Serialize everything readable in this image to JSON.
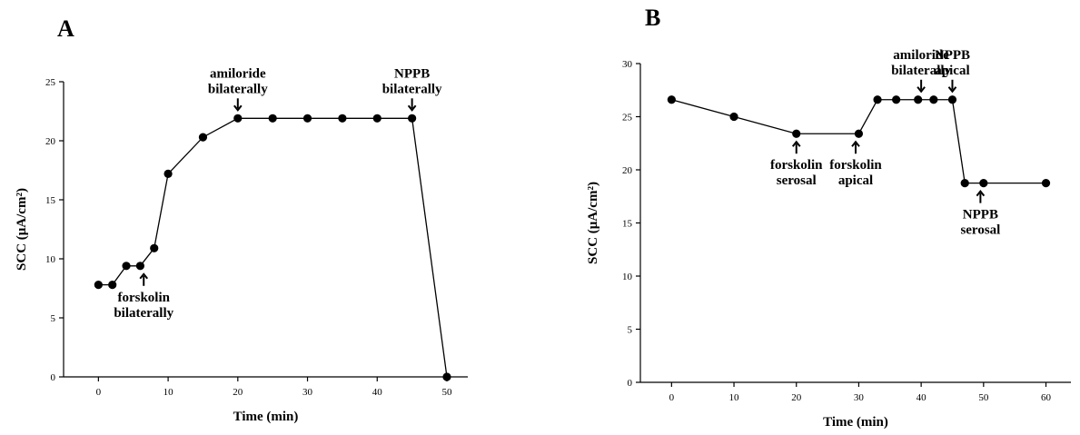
{
  "chart_data": [
    {
      "type": "line",
      "panel_label": "A",
      "xlabel": "Time (min)",
      "ylabel": "SCC (μA/cm²)",
      "xlim": [
        -5,
        53
      ],
      "ylim": [
        0,
        25
      ],
      "xticks": [
        "0",
        "10",
        "20",
        "30",
        "40",
        "50"
      ],
      "yticks": [
        "0",
        "5",
        "10",
        "15",
        "20",
        "25"
      ],
      "grid": false,
      "legend": "none",
      "series": [
        {
          "x": [
            0,
            2,
            4,
            6,
            8,
            10,
            15,
            20,
            25,
            30,
            35,
            40,
            45,
            50
          ],
          "y": [
            7.8,
            7.8,
            9.4,
            9.4,
            10.9,
            17.2,
            20.3,
            21.9,
            21.9,
            21.9,
            21.9,
            21.9,
            21.9,
            0
          ]
        }
      ],
      "annotations": [
        {
          "lines": [
            "forskolin",
            "bilaterally"
          ],
          "x": 6.5,
          "y": 9.4,
          "arrow": "up"
        },
        {
          "lines": [
            "amiloride",
            "bilaterally"
          ],
          "x": 20,
          "y": 21.9,
          "arrow": "down"
        },
        {
          "lines": [
            "NPPB",
            "bilaterally"
          ],
          "x": 45,
          "y": 21.9,
          "arrow": "down"
        }
      ]
    },
    {
      "type": "line",
      "panel_label": "B",
      "xlabel": "Time (min)",
      "ylabel": "SCC (μA/cm²)",
      "xlim": [
        -5,
        64
      ],
      "ylim": [
        0,
        30
      ],
      "xticks": [
        "0",
        "10",
        "20",
        "30",
        "40",
        "50",
        "60"
      ],
      "yticks": [
        "0",
        "5",
        "10",
        "15",
        "20",
        "25",
        "30"
      ],
      "grid": false,
      "legend": "none",
      "series": [
        {
          "x": [
            0,
            10,
            20,
            30,
            33,
            36,
            39.5,
            42,
            45,
            47,
            50,
            60
          ],
          "y": [
            26.6,
            25.0,
            23.4,
            23.4,
            26.6,
            26.6,
            26.6,
            26.6,
            26.6,
            18.75,
            18.75,
            18.75
          ]
        }
      ],
      "annotations": [
        {
          "lines": [
            "forskolin",
            "serosal"
          ],
          "x": 20,
          "y": 23.4,
          "arrow": "up"
        },
        {
          "lines": [
            "forskolin",
            "apical"
          ],
          "x": 29.5,
          "y": 23.4,
          "arrow": "up"
        },
        {
          "lines": [
            "amiloride",
            "bilaterally"
          ],
          "x": 40,
          "y": 26.6,
          "arrow": "down"
        },
        {
          "lines": [
            "NPPB",
            "apical"
          ],
          "x": 45,
          "y": 26.6,
          "arrow": "down"
        },
        {
          "lines": [
            "NPPB",
            "serosal"
          ],
          "x": 49.5,
          "y": 18.75,
          "arrow": "up"
        }
      ]
    }
  ]
}
